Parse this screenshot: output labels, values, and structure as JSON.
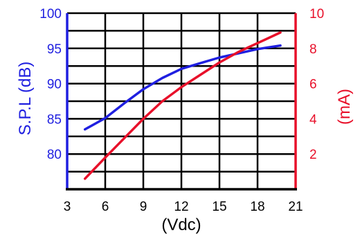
{
  "chart_data": {
    "type": "line",
    "x": {
      "ticks": [
        3,
        6,
        9,
        12,
        15,
        18,
        21
      ],
      "tick_labels": [
        "3",
        "6",
        "9",
        "12",
        "15",
        "18",
        "21"
      ],
      "label": "(Vdc)",
      "range": [
        3,
        21
      ]
    },
    "y_left": {
      "ticks": [
        80,
        85,
        90,
        95,
        100
      ],
      "tick_labels": [
        "80",
        "85",
        "90",
        "95",
        "100"
      ],
      "label": "S.P.L  (dB)",
      "range": [
        75,
        100
      ],
      "color": "#1f1fe0"
    },
    "y_right": {
      "ticks": [
        2,
        4,
        6,
        8,
        10
      ],
      "tick_labels": [
        "2",
        "4",
        "6",
        "8",
        "10"
      ],
      "label": "(mA)",
      "range": [
        0,
        10
      ],
      "color": "#e8102a"
    },
    "grid": true,
    "series": [
      {
        "axis": "left",
        "color": "#1f1fe0",
        "points": [
          [
            4.4,
            83.5
          ],
          [
            6,
            85.1
          ],
          [
            7.5,
            87.2
          ],
          [
            9,
            89.2
          ],
          [
            10.5,
            90.8
          ],
          [
            12,
            92.1
          ],
          [
            13.5,
            92.9
          ],
          [
            15,
            93.7
          ],
          [
            16.5,
            94.3
          ],
          [
            18,
            94.9
          ],
          [
            19.8,
            95.4
          ]
        ]
      },
      {
        "axis": "right",
        "color": "#e8102a",
        "points": [
          [
            4.4,
            0.6
          ],
          [
            6,
            1.8
          ],
          [
            7.5,
            2.9
          ],
          [
            9,
            4.0
          ],
          [
            10.5,
            5.0
          ],
          [
            12,
            5.8
          ],
          [
            13.5,
            6.5
          ],
          [
            15,
            7.2
          ],
          [
            16.5,
            7.8
          ],
          [
            18,
            8.3
          ],
          [
            19.8,
            8.9
          ]
        ]
      }
    ]
  }
}
